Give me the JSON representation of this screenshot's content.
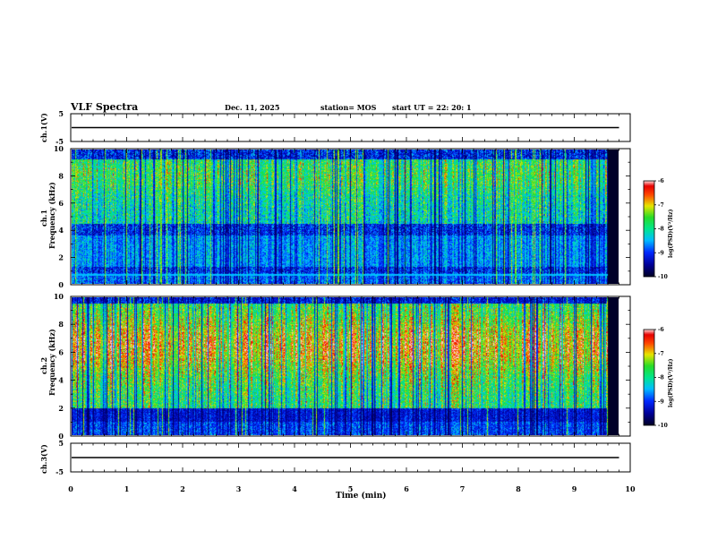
{
  "header": {
    "title": "VLF Spectra",
    "date": "Dec. 11, 2025",
    "station": "station= MOS",
    "start_ut": "start  UT =   22: 20: 1"
  },
  "chart_data": [
    {
      "type": "line",
      "name": "ch1-waveform",
      "ylabel": "ch.1(V)",
      "ylim": [
        -5,
        5
      ],
      "yticks": [
        "5",
        "-5"
      ],
      "level": 0
    },
    {
      "type": "heatmap",
      "name": "ch1-spectrogram",
      "ylabel_top": "ch.1",
      "ylabel": "Frequency  (kHz)",
      "ylim": [
        0,
        10
      ],
      "yticks": [
        "0",
        "2",
        "4",
        "6",
        "8",
        "10"
      ],
      "band_kHz": [
        4.5,
        9.3
      ],
      "lower_band_kHz": [
        1.3,
        3.6
      ],
      "colorbar": {
        "label": "log(PSD)(V²/Hz)",
        "range": [
          -10,
          -6
        ],
        "ticks": [
          "-6",
          "-7",
          "-8",
          "-9",
          "-10"
        ]
      }
    },
    {
      "type": "heatmap",
      "name": "ch2-spectrogram",
      "ylabel_top": "ch.2",
      "ylabel": "Frequency  (kHz)",
      "ylim": [
        0,
        10
      ],
      "yticks": [
        "0",
        "2",
        "4",
        "6",
        "8",
        "10"
      ],
      "band_kHz": [
        2.0,
        9.6
      ],
      "peak_kHz": 6.5,
      "colorbar": {
        "label": "log(PSD)(V²/Hz)",
        "range": [
          -10,
          -6
        ],
        "ticks": [
          "-6",
          "-7",
          "-8",
          "-9",
          "-10"
        ]
      }
    },
    {
      "type": "line",
      "name": "ch3-waveform",
      "ylabel": "ch.3(V)",
      "ylim": [
        -5,
        5
      ],
      "yticks": [
        "5",
        "-5"
      ],
      "level": 0
    }
  ],
  "xaxis": {
    "label": "Time  (min)",
    "range": [
      0,
      10
    ],
    "ticks": [
      "0",
      "1",
      "2",
      "3",
      "4",
      "5",
      "6",
      "7",
      "8",
      "9",
      "10"
    ],
    "data_end_min": 9.8
  }
}
